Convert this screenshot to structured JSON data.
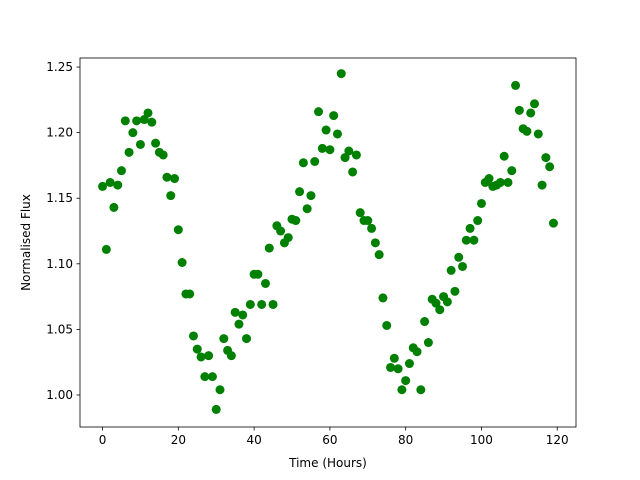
{
  "chart_data": {
    "type": "scatter",
    "x_label": "Time (Hours)",
    "y_label": "Normalised Flux",
    "color": "#008000",
    "xlim": [
      -5.95,
      124.95
    ],
    "ylim": [
      0.9756,
      1.2569
    ],
    "xticks": [
      0,
      20,
      40,
      60,
      80,
      100,
      120
    ],
    "yticks": [
      {
        "value": 1.0,
        "label": "1.00"
      },
      {
        "value": 1.05,
        "label": "1.05"
      },
      {
        "value": 1.1,
        "label": "1.10"
      },
      {
        "value": 1.15,
        "label": "1.15"
      },
      {
        "value": 1.2,
        "label": "1.20"
      },
      {
        "value": 1.25,
        "label": "1.25"
      }
    ],
    "x": [
      0,
      1,
      2,
      3,
      4,
      5,
      6,
      7,
      8,
      9,
      10,
      11,
      12,
      13,
      14,
      15,
      16,
      17,
      18,
      19,
      20,
      21,
      22,
      23,
      24,
      25,
      26,
      27,
      28,
      29,
      30,
      31,
      32,
      33,
      34,
      35,
      36,
      37,
      38,
      39,
      40,
      41,
      42,
      43,
      44,
      45,
      46,
      47,
      48,
      49,
      50,
      51,
      52,
      53,
      54,
      55,
      56,
      57,
      58,
      59,
      60,
      61,
      62,
      63,
      64,
      65,
      66,
      67,
      68,
      69,
      70,
      71,
      72,
      73,
      74,
      75,
      76,
      77,
      78,
      79,
      80,
      81,
      82,
      83,
      84,
      85,
      86,
      87,
      88,
      89,
      90,
      91,
      92,
      93,
      94,
      95,
      96,
      97,
      98,
      99,
      100,
      101,
      102,
      103,
      104,
      105,
      106,
      107,
      108,
      109,
      110,
      111,
      112,
      113,
      114,
      115,
      116,
      117,
      118,
      119
    ],
    "values": [
      1.159,
      1.111,
      1.162,
      1.143,
      1.16,
      1.171,
      1.209,
      1.185,
      1.2,
      1.209,
      1.191,
      1.21,
      1.215,
      1.208,
      1.192,
      1.185,
      1.183,
      1.166,
      1.152,
      1.165,
      1.126,
      1.101,
      1.077,
      1.077,
      1.045,
      1.035,
      1.029,
      1.014,
      1.03,
      1.014,
      0.989,
      1.004,
      1.043,
      1.034,
      1.03,
      1.063,
      1.054,
      1.061,
      1.043,
      1.069,
      1.092,
      1.092,
      1.069,
      1.085,
      1.112,
      1.069,
      1.129,
      1.125,
      1.116,
      1.12,
      1.134,
      1.133,
      1.155,
      1.177,
      1.142,
      1.152,
      1.178,
      1.216,
      1.188,
      1.202,
      1.187,
      1.213,
      1.199,
      1.245,
      1.181,
      1.186,
      1.17,
      1.183,
      1.139,
      1.133,
      1.133,
      1.127,
      1.116,
      1.107,
      1.074,
      1.053,
      1.021,
      1.028,
      1.02,
      1.004,
      1.011,
      1.024,
      1.036,
      1.033,
      1.004,
      1.056,
      1.04,
      1.073,
      1.07,
      1.065,
      1.075,
      1.071,
      1.095,
      1.079,
      1.105,
      1.098,
      1.118,
      1.127,
      1.118,
      1.133,
      1.146,
      1.162,
      1.165,
      1.159,
      1.16,
      1.162,
      1.182,
      1.162,
      1.171,
      1.236,
      1.217,
      1.203,
      1.201,
      1.215,
      1.222,
      1.199,
      1.16,
      1.181,
      1.174,
      1.131
    ]
  }
}
